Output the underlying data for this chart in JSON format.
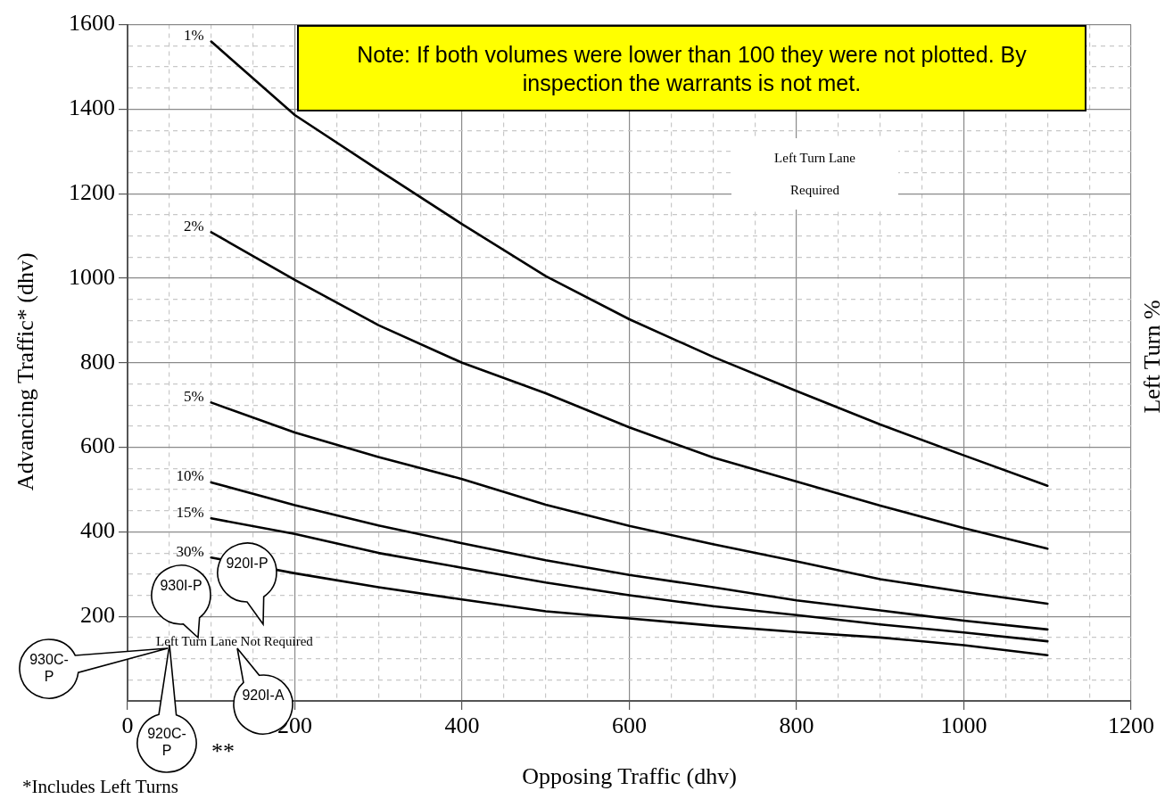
{
  "chart_data": {
    "type": "line",
    "xlabel": "Opposing Traffic (dhv)",
    "ylabel": "Advancing Traffic* (dhv)",
    "y2label": "Left Turn %",
    "x": [
      100,
      200,
      300,
      400,
      500,
      600,
      700,
      800,
      900,
      1000,
      1100
    ],
    "series": [
      {
        "name": "1%",
        "color": "#000000",
        "values": [
          1560,
          1386,
          1256,
          1128,
          1005,
          903,
          814,
          733,
          654,
          581,
          509
        ]
      },
      {
        "name": "2%",
        "color": "#000000",
        "values": [
          1109,
          996,
          889,
          800,
          728,
          647,
          576,
          519,
          462,
          409,
          360
        ]
      },
      {
        "name": "5%",
        "color": "#000000",
        "values": [
          706,
          635,
          577,
          525,
          464,
          414,
          371,
          330,
          288,
          258,
          230
        ]
      },
      {
        "name": "10%",
        "color": "#000000",
        "values": [
          517,
          463,
          415,
          373,
          333,
          298,
          269,
          238,
          214,
          190,
          169
        ]
      },
      {
        "name": "15%",
        "color": "#000000",
        "values": [
          432,
          395,
          350,
          315,
          280,
          250,
          224,
          203,
          181,
          162,
          141
        ]
      },
      {
        "name": "30%",
        "color": "#000000",
        "values": [
          339,
          302,
          269,
          240,
          212,
          195,
          178,
          163,
          150,
          132,
          108
        ]
      }
    ],
    "xlim": [
      0,
      1200
    ],
    "xticks": [
      0,
      {
        "value": 50,
        "label": null
      },
      {
        "value": 100,
        "label": null
      },
      {
        "value": 150,
        "label": null
      },
      200,
      {
        "value": 250,
        "label": null
      },
      {
        "value": 300,
        "label": null
      },
      {
        "value": 350,
        "label": null
      },
      400,
      {
        "value": 450,
        "label": null
      },
      {
        "value": 500,
        "label": null
      },
      {
        "value": 550,
        "label": null
      },
      600,
      {
        "value": 650,
        "label": null
      },
      {
        "value": 700,
        "label": null
      },
      {
        "value": 750,
        "label": null
      },
      800,
      {
        "value": 850,
        "label": null
      },
      {
        "value": 900,
        "label": null
      },
      {
        "value": 950,
        "label": null
      },
      1000,
      {
        "value": 1050,
        "label": null
      },
      {
        "value": 1100,
        "label": null
      },
      {
        "value": 1150,
        "label": null
      },
      1200
    ],
    "ylim": [
      0,
      1600
    ],
    "yticks": [
      {
        "value": 0,
        "label": null
      },
      {
        "value": 50,
        "label": null
      },
      {
        "value": 100,
        "label": null
      },
      {
        "value": 150,
        "label": null
      },
      200,
      {
        "value": 250,
        "label": null
      },
      {
        "value": 300,
        "label": null
      },
      {
        "value": 350,
        "label": null
      },
      400,
      {
        "value": 450,
        "label": null
      },
      {
        "value": 500,
        "label": null
      },
      {
        "value": 550,
        "label": null
      },
      600,
      {
        "value": 650,
        "label": null
      },
      {
        "value": 700,
        "label": null
      },
      {
        "value": 750,
        "label": null
      },
      800,
      {
        "value": 850,
        "label": null
      },
      {
        "value": 900,
        "label": null
      },
      {
        "value": 950,
        "label": null
      },
      1000,
      {
        "value": 1050,
        "label": null
      },
      {
        "value": 1100,
        "label": null
      },
      {
        "value": 1150,
        "label": null
      },
      1200,
      {
        "value": 1250,
        "label": null
      },
      {
        "value": 1300,
        "label": null
      },
      {
        "value": 1350,
        "label": null
      },
      1400,
      {
        "value": 1450,
        "label": null
      },
      {
        "value": 1500,
        "label": null
      },
      {
        "value": 1550,
        "label": null
      },
      1600
    ],
    "grid": true,
    "legend": false,
    "marker": "none",
    "line_style": "solid",
    "annotations": [
      "Note:  If both volumes were lower than 100 they were not plotted.  By inspection the warrants is not met.",
      "*Includes Left Turns",
      "**",
      "Left Turn Lane Required",
      "Left Turn Lane Not Required",
      "930C-P",
      "920C-P",
      "930I-P",
      "920I-P",
      "920I-A"
    ]
  }
}
